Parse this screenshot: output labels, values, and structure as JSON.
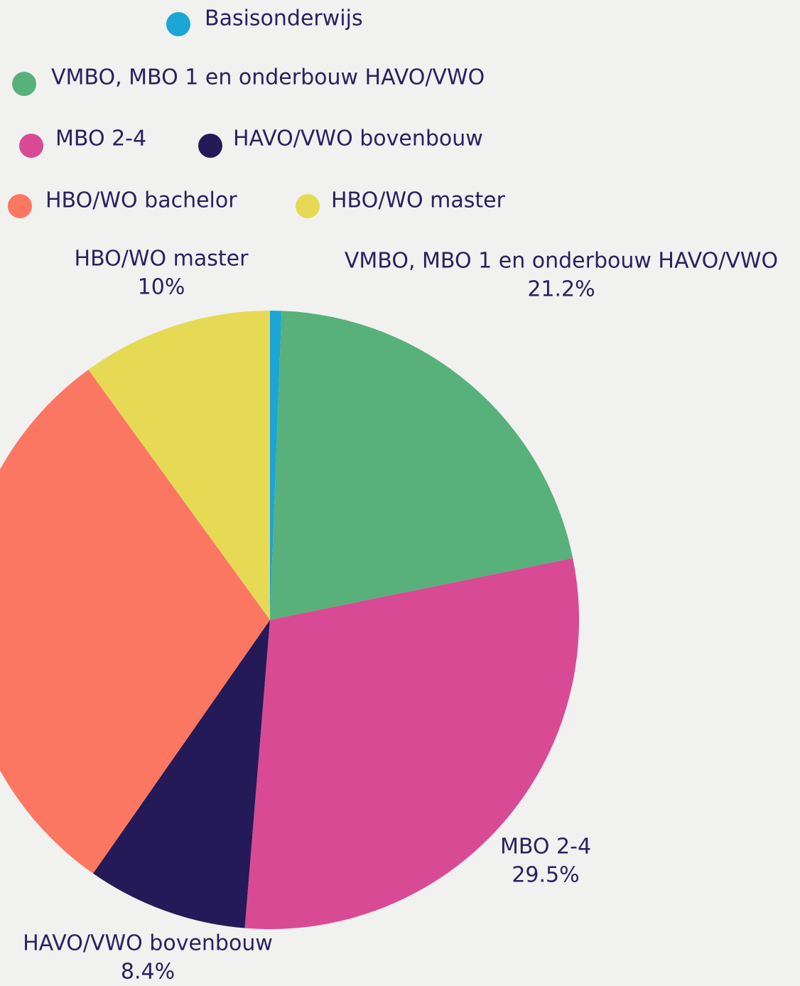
{
  "chart_data": {
    "type": "pie",
    "categories": [
      "Basisonderwijs",
      "VMBO, MBO 1 en onderbouw HAVO/VWO",
      "MBO 2-4",
      "HAVO/VWO bovenbouw",
      "HBO/WO bachelor",
      "HBO/WO master"
    ],
    "values": [
      0.6,
      21.2,
      29.5,
      8.4,
      30.3,
      10
    ],
    "value_labels": [
      null,
      "21.2%",
      "29.5%",
      "8.4%",
      null,
      "10%"
    ],
    "colors": [
      "#1ba6d6",
      "#58b07a",
      "#d94a95",
      "#231a57",
      "#fc7762",
      "#e6da55"
    ],
    "legend": "top"
  }
}
